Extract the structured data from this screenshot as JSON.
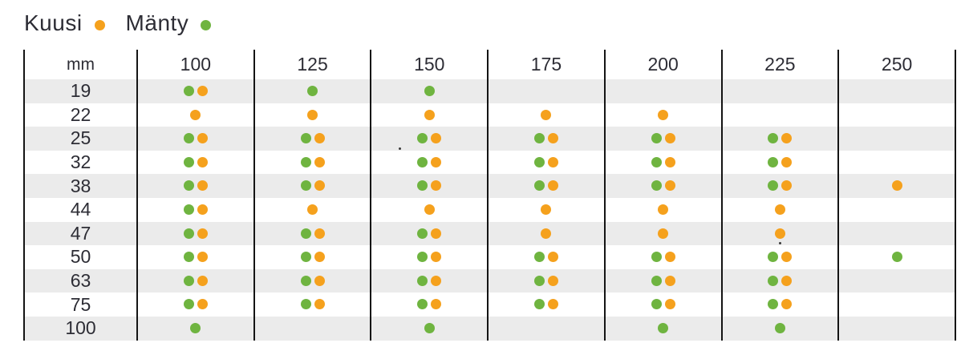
{
  "legend": [
    {
      "label": "Kuusi",
      "color_name": "orange",
      "color": "#F5A11D"
    },
    {
      "label": "Mänty",
      "color_name": "green",
      "color": "#6FB440"
    }
  ],
  "chart_data": {
    "type": "table",
    "unit_label": "mm",
    "columns": [
      "100",
      "125",
      "150",
      "175",
      "200",
      "225",
      "250"
    ],
    "legend": [
      {
        "species": "Kuusi",
        "dot": "orange"
      },
      {
        "species": "Mänty",
        "dot": "green"
      }
    ],
    "rows": [
      {
        "mm": "19",
        "cells": [
          [
            "green",
            "orange"
          ],
          [
            "green"
          ],
          [
            "green"
          ],
          [],
          [],
          [],
          []
        ]
      },
      {
        "mm": "22",
        "cells": [
          [
            "orange"
          ],
          [
            "orange"
          ],
          [
            "orange"
          ],
          [
            "orange"
          ],
          [
            "orange"
          ],
          [],
          []
        ]
      },
      {
        "mm": "25",
        "cells": [
          [
            "green",
            "orange"
          ],
          [
            "green",
            "orange"
          ],
          [
            "green",
            "orange"
          ],
          [
            "green",
            "orange"
          ],
          [
            "green",
            "orange"
          ],
          [
            "green",
            "orange"
          ],
          []
        ]
      },
      {
        "mm": "32",
        "cells": [
          [
            "green",
            "orange"
          ],
          [
            "green",
            "orange"
          ],
          [
            "green",
            "orange"
          ],
          [
            "green",
            "orange"
          ],
          [
            "green",
            "orange"
          ],
          [
            "green",
            "orange"
          ],
          []
        ]
      },
      {
        "mm": "38",
        "cells": [
          [
            "green",
            "orange"
          ],
          [
            "green",
            "orange"
          ],
          [
            "green",
            "orange"
          ],
          [
            "green",
            "orange"
          ],
          [
            "green",
            "orange"
          ],
          [
            "green",
            "orange"
          ],
          [
            "orange"
          ]
        ]
      },
      {
        "mm": "44",
        "cells": [
          [
            "green",
            "orange"
          ],
          [
            "orange"
          ],
          [
            "orange"
          ],
          [
            "orange"
          ],
          [
            "orange"
          ],
          [
            "orange"
          ],
          []
        ]
      },
      {
        "mm": "47",
        "cells": [
          [
            "green",
            "orange"
          ],
          [
            "green",
            "orange"
          ],
          [
            "green",
            "orange"
          ],
          [
            "orange"
          ],
          [
            "orange"
          ],
          [
            "orange"
          ],
          []
        ]
      },
      {
        "mm": "50",
        "cells": [
          [
            "green",
            "orange"
          ],
          [
            "green",
            "orange"
          ],
          [
            "green",
            "orange"
          ],
          [
            "green",
            "orange"
          ],
          [
            "green",
            "orange"
          ],
          [
            "green",
            "orange"
          ],
          [
            "green"
          ]
        ]
      },
      {
        "mm": "63",
        "cells": [
          [
            "green",
            "orange"
          ],
          [
            "green",
            "orange"
          ],
          [
            "green",
            "orange"
          ],
          [
            "green",
            "orange"
          ],
          [
            "green",
            "orange"
          ],
          [
            "green",
            "orange"
          ],
          []
        ]
      },
      {
        "mm": "75",
        "cells": [
          [
            "green",
            "orange"
          ],
          [
            "green",
            "orange"
          ],
          [
            "green",
            "orange"
          ],
          [
            "green",
            "orange"
          ],
          [
            "green",
            "orange"
          ],
          [
            "green",
            "orange"
          ],
          []
        ]
      },
      {
        "mm": "100",
        "cells": [
          [
            "green"
          ],
          [],
          [
            "green"
          ],
          [],
          [
            "green"
          ],
          [
            "green"
          ],
          []
        ]
      }
    ]
  },
  "colors": {
    "kuusi_orange": "#F5A11D",
    "manty_green": "#6FB440",
    "row_stripe": "#EBEBEB",
    "text": "#2D2D35",
    "grid_line": "#141414"
  }
}
